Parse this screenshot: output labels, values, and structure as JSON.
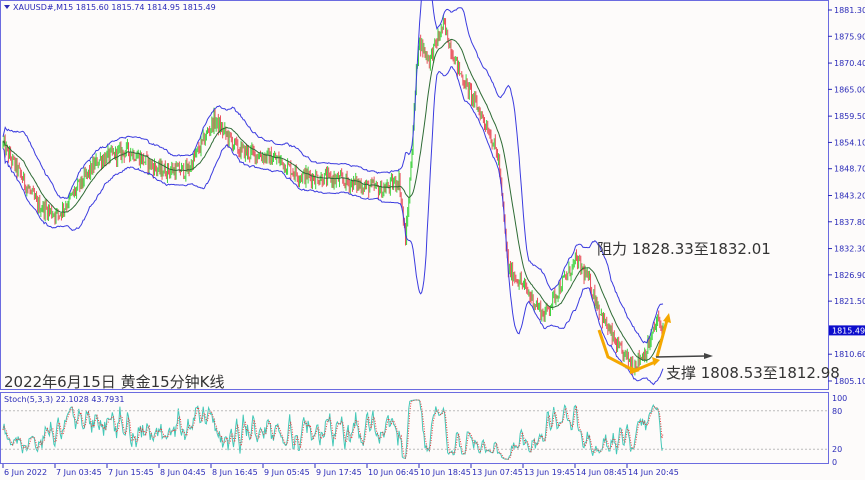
{
  "header": {
    "symbol_line": "XAUUSD#,M15  1815.60 1815.74 1814.95 1815.49"
  },
  "indicator": {
    "label": "Stoch(5,3,3) 22.1028 43.7931"
  },
  "annotations": {
    "title": "2022年6月15日 黄金15分钟K线",
    "resistance": "阻力 1828.33至1832.01",
    "support": "支撑 1808.53至1812.98"
  },
  "colors": {
    "bull": "#3fd33f",
    "bear": "#e8505b",
    "bands": "#3b3bdf",
    "ma": "#2e6b35",
    "stoch_main": "#45c9b8",
    "stoch_signal": "#e83a3a",
    "arrow": "#f5a800",
    "axis": "#2b2bb8"
  },
  "chart_data": {
    "type": "candlestick",
    "symbol": "XAUUSD#",
    "timeframe": "M15",
    "last_price": "1815.49",
    "ylim": [
      1802.0,
      1883.0
    ],
    "y_ticks": [
      "1881.30",
      "1875.90",
      "1870.40",
      "1865.00",
      "1859.50",
      "1854.10",
      "1848.70",
      "1843.20",
      "1837.80",
      "1832.30",
      "1826.90",
      "1821.50",
      "1810.60",
      "1805.10"
    ],
    "x_ticks": [
      "6 Jun 2022",
      "7 Jun 03:45",
      "7 Jun 15:45",
      "8 Jun 04:45",
      "8 Jun 16:45",
      "9 Jun 05:45",
      "9 Jun 17:45",
      "10 Jun 06:45",
      "10 Jun 18:45",
      "13 Jun 07:45",
      "13 Jun 19:45",
      "14 Jun 08:45",
      "14 Jun 20:45"
    ],
    "approx_close_path": [
      [
        0,
        1853.6
      ],
      [
        32,
        1841.2
      ],
      [
        51,
        1839.2
      ],
      [
        88,
        1850.5
      ],
      [
        116,
        1852.5
      ],
      [
        144,
        1848.4
      ],
      [
        171,
        1848.4
      ],
      [
        195,
        1858.7
      ],
      [
        218,
        1852.5
      ],
      [
        255,
        1850.5
      ],
      [
        273,
        1847.4
      ],
      [
        310,
        1846.4
      ],
      [
        351,
        1844.3
      ],
      [
        366,
        1846.4
      ],
      [
        372,
        1834.1
      ],
      [
        375,
        1842.3
      ],
      [
        380,
        1860.8
      ],
      [
        384,
        1875.1
      ],
      [
        394,
        1871.0
      ],
      [
        407,
        1878.2
      ],
      [
        421,
        1869.0
      ],
      [
        435,
        1862.8
      ],
      [
        449,
        1856.7
      ],
      [
        458,
        1850.5
      ],
      [
        467,
        1827.9
      ],
      [
        477,
        1825.8
      ],
      [
        490,
        1821.7
      ],
      [
        500,
        1818.6
      ],
      [
        513,
        1823.8
      ],
      [
        530,
        1829.9
      ],
      [
        541,
        1825.8
      ],
      [
        555,
        1817.6
      ],
      [
        569,
        1811.5
      ],
      [
        583,
        1808.4
      ],
      [
        595,
        1811.5
      ],
      [
        605,
        1817.6
      ],
      [
        610,
        1815.49
      ]
    ],
    "stochastic": {
      "params": "5,3,3",
      "main": 22.1028,
      "signal": 43.7931,
      "levels": [
        20,
        80
      ],
      "ylim": [
        0,
        100
      ],
      "y_ticks": [
        "100",
        "80",
        "20",
        "0"
      ]
    }
  }
}
